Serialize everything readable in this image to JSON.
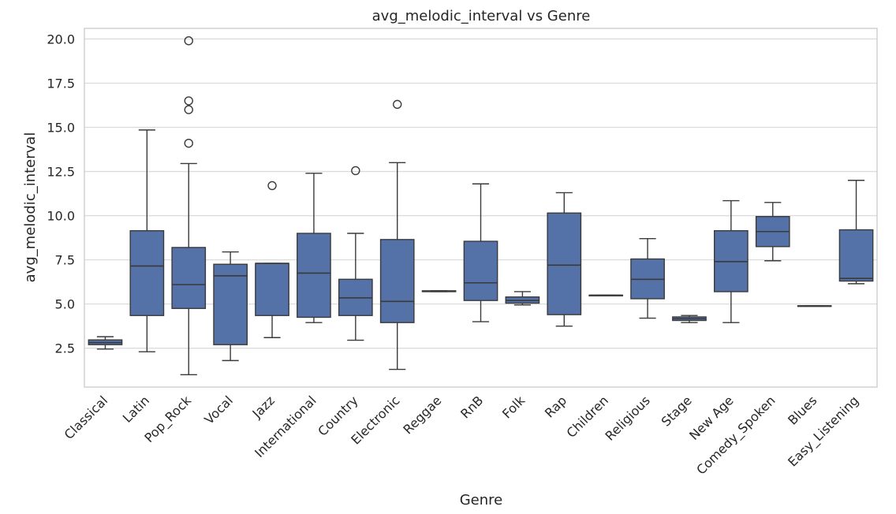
{
  "chart_data": {
    "type": "box",
    "title": "avg_melodic_interval vs Genre",
    "xlabel": "Genre",
    "ylabel": "avg_melodic_interval",
    "ylim": [
      0.3,
      20.6
    ],
    "yticks": [
      2.5,
      5.0,
      7.5,
      10.0,
      12.5,
      15.0,
      17.5,
      20.0
    ],
    "ytick_labels": [
      "2.5",
      "5.0",
      "7.5",
      "10.0",
      "12.5",
      "15.0",
      "17.5",
      "20.0"
    ],
    "grid": true,
    "color": "#5471a8",
    "categories": [
      "Classical",
      "Latin",
      "Pop_Rock",
      "Vocal",
      "Jazz",
      "International",
      "Country",
      "Electronic",
      "Reggae",
      "RnB",
      "Folk",
      "Rap",
      "Children",
      "Religious",
      "Stage",
      "New Age",
      "Comedy_Spoken",
      "Blues",
      "Easy_Listening"
    ],
    "boxes": [
      {
        "category": "Classical",
        "whislo": 2.45,
        "q1": 2.7,
        "med": 2.82,
        "q3": 2.97,
        "whishi": 3.15,
        "fliers": []
      },
      {
        "category": "Latin",
        "whislo": 2.3,
        "q1": 4.35,
        "med": 7.15,
        "q3": 9.15,
        "whishi": 14.85,
        "fliers": []
      },
      {
        "category": "Pop_Rock",
        "whislo": 1.0,
        "q1": 4.75,
        "med": 6.1,
        "q3": 8.2,
        "whishi": 12.95,
        "fliers": [
          14.1,
          16.0,
          16.5,
          19.9
        ]
      },
      {
        "category": "Vocal",
        "whislo": 1.8,
        "q1": 2.7,
        "med": 6.6,
        "q3": 7.25,
        "whishi": 7.95,
        "fliers": []
      },
      {
        "category": "Jazz",
        "whislo": 3.1,
        "q1": 4.35,
        "med": 7.3,
        "q3": 7.3,
        "whishi": 7.3,
        "fliers": [
          11.7
        ]
      },
      {
        "category": "International",
        "whislo": 3.95,
        "q1": 4.25,
        "med": 6.75,
        "q3": 9.0,
        "whishi": 12.4,
        "fliers": []
      },
      {
        "category": "Country",
        "whislo": 2.95,
        "q1": 4.35,
        "med": 5.35,
        "q3": 6.4,
        "whishi": 9.0,
        "fliers": [
          12.55
        ]
      },
      {
        "category": "Electronic",
        "whislo": 1.3,
        "q1": 3.95,
        "med": 5.15,
        "q3": 8.65,
        "whishi": 13.0,
        "fliers": [
          16.3
        ]
      },
      {
        "category": "Reggae",
        "whislo": 5.7,
        "q1": 5.7,
        "med": 5.72,
        "q3": 5.75,
        "whishi": 5.75,
        "fliers": []
      },
      {
        "category": "RnB",
        "whislo": 4.0,
        "q1": 5.2,
        "med": 6.2,
        "q3": 8.55,
        "whishi": 11.8,
        "fliers": []
      },
      {
        "category": "Folk",
        "whislo": 4.95,
        "q1": 5.05,
        "med": 5.2,
        "q3": 5.4,
        "whishi": 5.7,
        "fliers": []
      },
      {
        "category": "Rap",
        "whislo": 3.75,
        "q1": 4.4,
        "med": 7.2,
        "q3": 10.15,
        "whishi": 11.3,
        "fliers": []
      },
      {
        "category": "Children",
        "whislo": 5.5,
        "q1": 5.5,
        "med": 5.5,
        "q3": 5.5,
        "whishi": 5.5,
        "fliers": []
      },
      {
        "category": "Religious",
        "whislo": 4.2,
        "q1": 5.3,
        "med": 6.4,
        "q3": 7.55,
        "whishi": 8.7,
        "fliers": []
      },
      {
        "category": "Stage",
        "whislo": 3.95,
        "q1": 4.07,
        "med": 4.17,
        "q3": 4.27,
        "whishi": 4.35,
        "fliers": []
      },
      {
        "category": "New Age",
        "whislo": 3.95,
        "q1": 5.7,
        "med": 7.4,
        "q3": 9.15,
        "whishi": 10.85,
        "fliers": []
      },
      {
        "category": "Comedy_Spoken",
        "whislo": 7.45,
        "q1": 8.25,
        "med": 9.1,
        "q3": 9.95,
        "whishi": 10.75,
        "fliers": []
      },
      {
        "category": "Blues",
        "whislo": 4.9,
        "q1": 4.9,
        "med": 4.9,
        "q3": 4.9,
        "whishi": 4.9,
        "fliers": []
      },
      {
        "category": "Easy_Listening",
        "whislo": 6.15,
        "q1": 6.3,
        "med": 6.45,
        "q3": 9.2,
        "whishi": 12.0,
        "fliers": []
      }
    ]
  }
}
